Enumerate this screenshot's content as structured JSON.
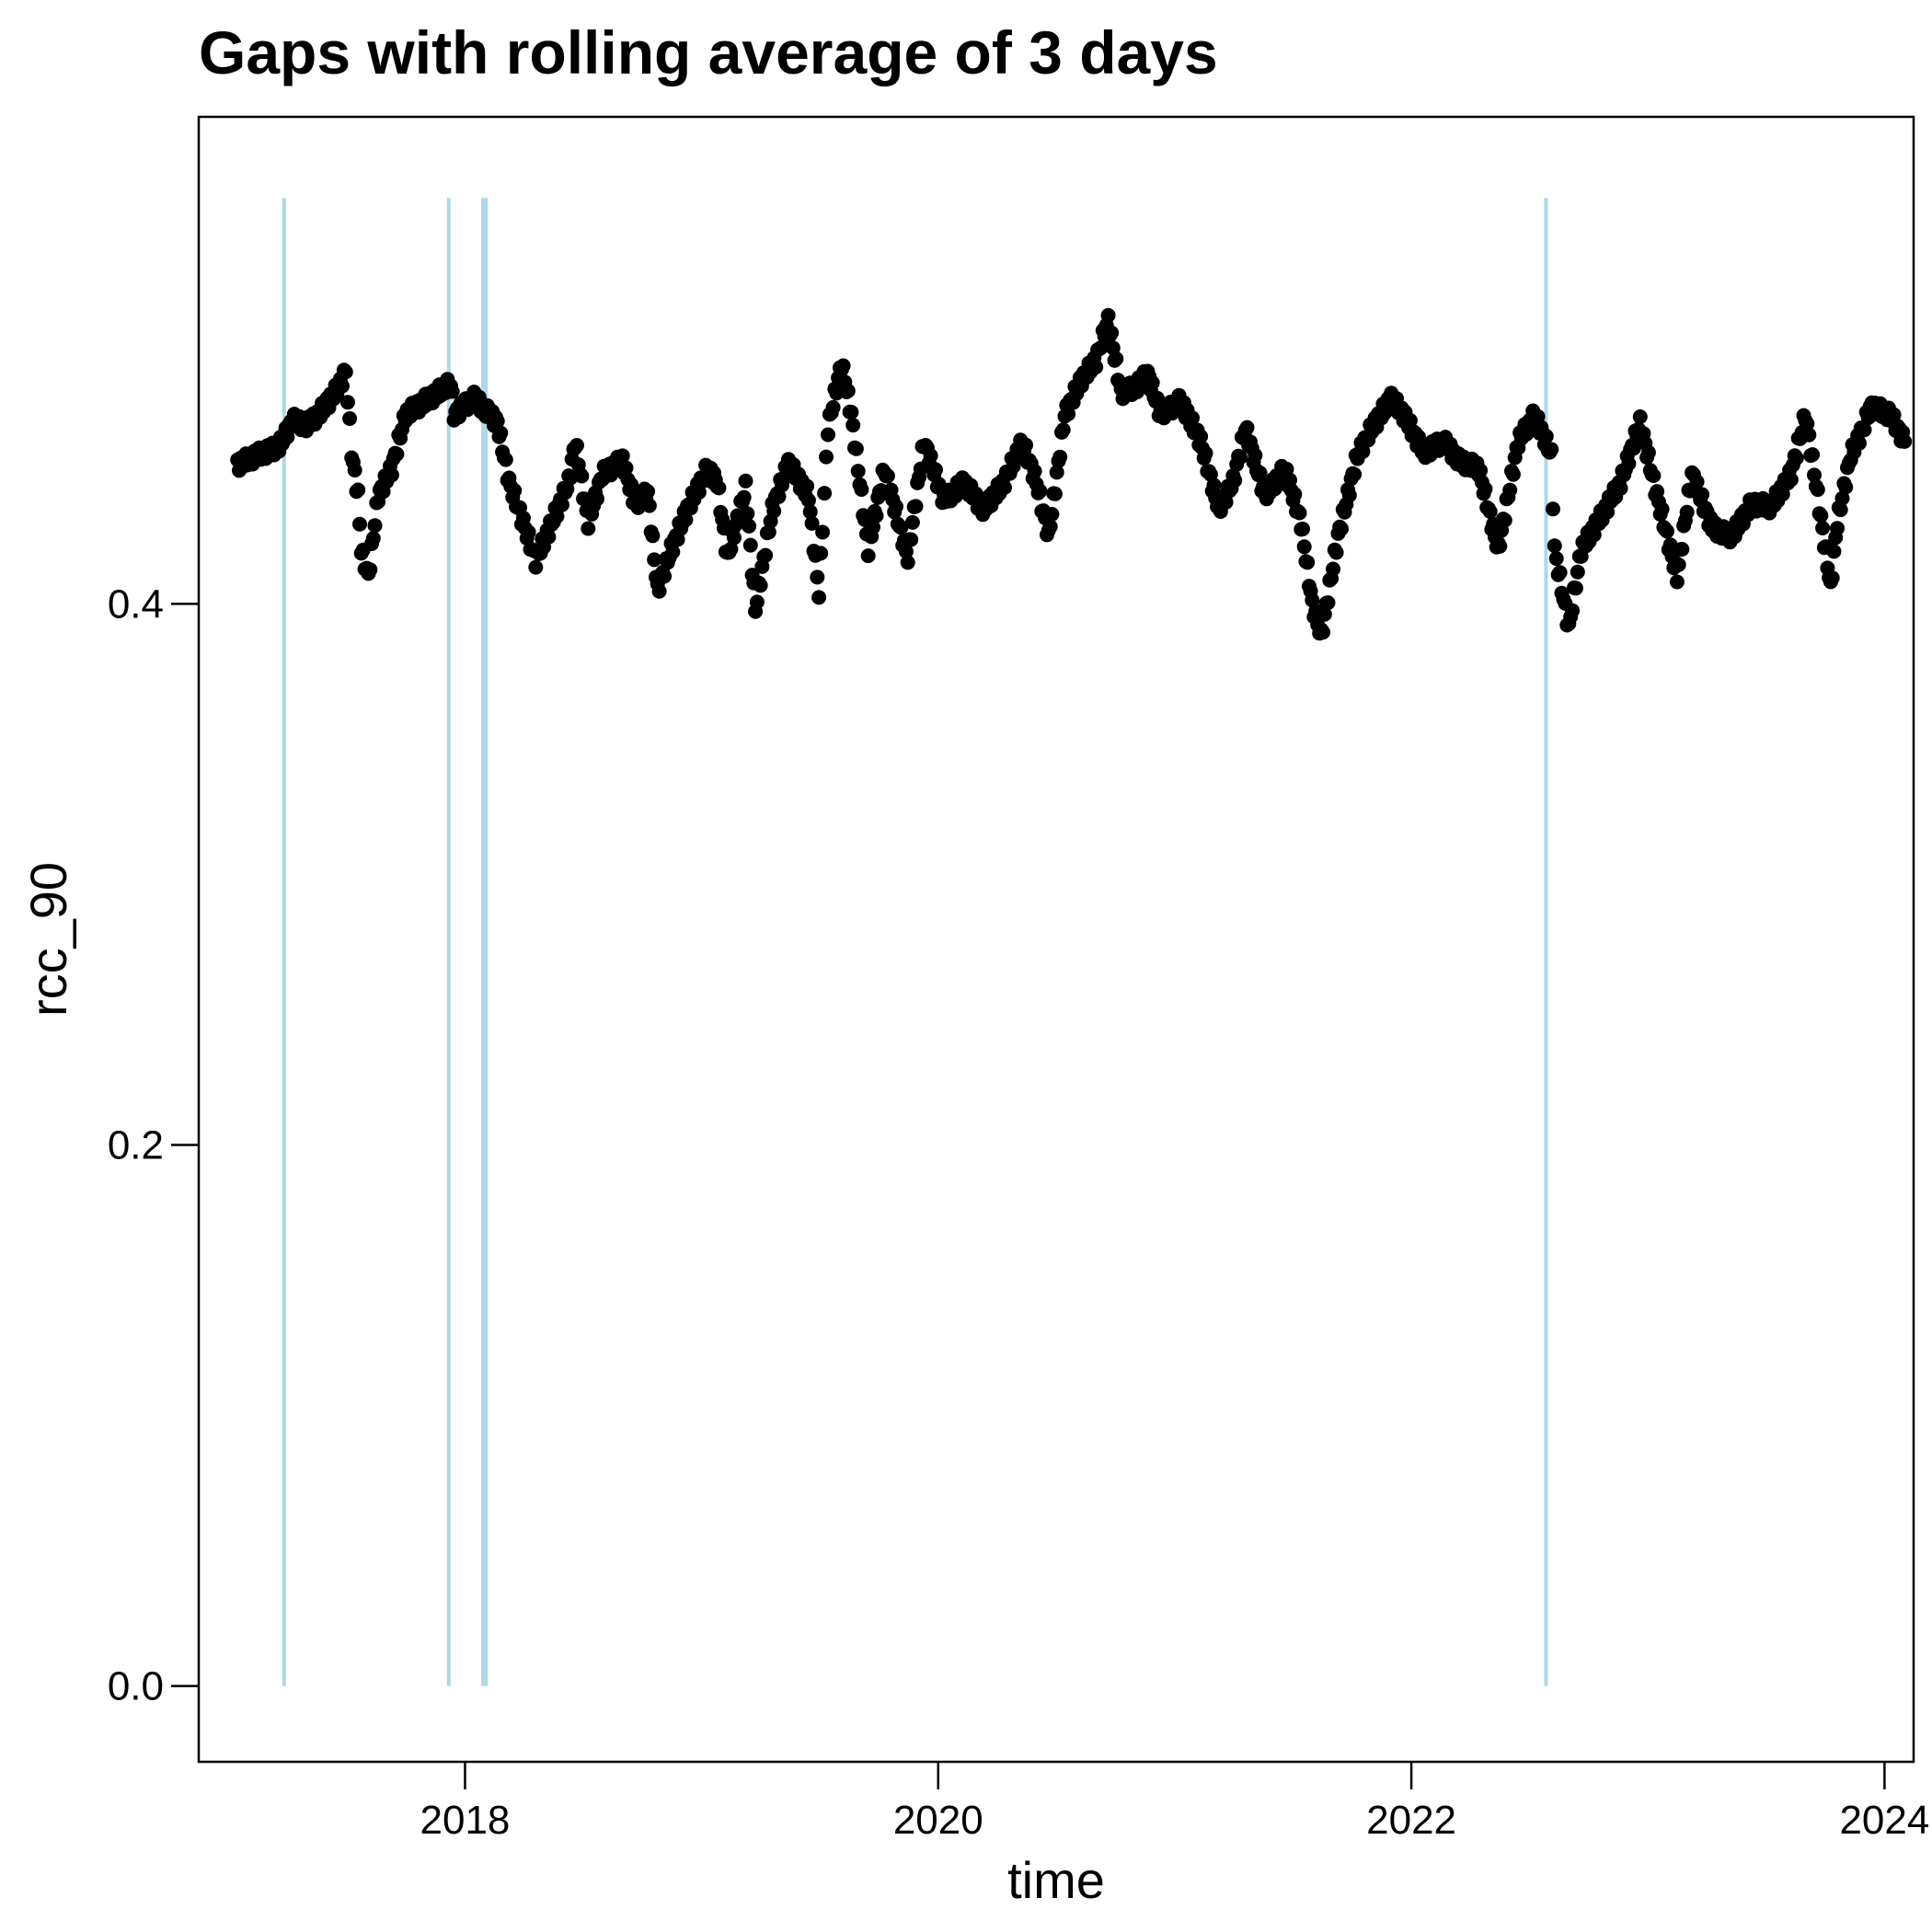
{
  "chart_data": {
    "type": "scatter",
    "title": "Gaps with rolling average of 3 days",
    "xlabel": "time",
    "ylabel": "rcc_90",
    "x_ticks": [
      "2018",
      "2020",
      "2022",
      "2024"
    ],
    "y_ticks": [
      "0.0",
      "0.2",
      "0.4"
    ],
    "ylim": [
      -0.028,
      0.58
    ],
    "xlim": [
      "2016-11-16",
      "2024-02-15"
    ],
    "grid": false,
    "colors": {
      "points": "#000000",
      "gaps": "#add8e6"
    },
    "gaps": [
      {
        "start": "2017-03-25",
        "end": "2017-03-27"
      },
      {
        "start": "2017-12-04",
        "end": "2017-12-06"
      },
      {
        "start": "2018-01-26",
        "end": "2018-02-05"
      },
      {
        "start": "2022-07-25",
        "end": "2022-07-27"
      }
    ],
    "gap_range": [
      0.0,
      0.55
    ],
    "series": [
      {
        "points": [
          [
            "2017-01-15",
            0.4515
          ],
          [
            "2017-02-15",
            0.455
          ],
          [
            "2017-03-15",
            0.4575
          ],
          [
            "2017-03-25",
            0.46
          ],
          [
            "2017-04-10",
            0.468
          ],
          [
            "2017-05-01",
            0.466
          ],
          [
            "2017-05-20",
            0.47
          ],
          [
            "2017-06-05",
            0.475
          ],
          [
            "2017-06-20",
            0.48
          ],
          [
            "2017-07-01",
            0.486
          ],
          [
            "2017-07-10",
            0.456
          ],
          [
            "2017-07-20",
            0.44
          ],
          [
            "2017-07-25",
            0.42
          ],
          [
            "2017-08-05",
            0.41
          ],
          [
            "2017-08-20",
            0.44
          ],
          [
            "2017-09-10",
            0.45
          ],
          [
            "2017-10-01",
            0.47
          ],
          [
            "2017-11-01",
            0.475
          ],
          [
            "2017-11-20",
            0.478
          ],
          [
            "2017-12-10",
            0.482
          ],
          [
            "2017-12-15",
            0.47
          ],
          [
            "2018-01-15",
            0.476
          ],
          [
            "2018-02-20",
            0.467
          ],
          [
            "2018-03-10",
            0.445
          ],
          [
            "2018-04-01",
            0.43
          ],
          [
            "2018-04-20",
            0.416
          ],
          [
            "2018-05-15",
            0.43
          ],
          [
            "2018-06-10",
            0.445
          ],
          [
            "2018-06-20",
            0.46
          ],
          [
            "2018-07-10",
            0.43
          ],
          [
            "2018-08-01",
            0.448
          ],
          [
            "2018-09-01",
            0.453
          ],
          [
            "2018-09-20",
            0.437
          ],
          [
            "2018-10-10",
            0.441
          ],
          [
            "2018-10-25",
            0.405
          ],
          [
            "2018-11-15",
            0.42
          ],
          [
            "2018-12-10",
            0.435
          ],
          [
            "2019-01-10",
            0.45
          ],
          [
            "2019-01-25",
            0.445
          ],
          [
            "2019-02-10",
            0.417
          ],
          [
            "2019-03-10",
            0.443
          ],
          [
            "2019-03-25",
            0.398
          ],
          [
            "2019-04-20",
            0.435
          ],
          [
            "2019-05-15",
            0.452
          ],
          [
            "2019-06-15",
            0.44
          ],
          [
            "2019-07-01",
            0.404
          ],
          [
            "2019-07-15",
            0.465
          ],
          [
            "2019-08-05",
            0.489
          ],
          [
            "2019-08-20",
            0.47
          ],
          [
            "2019-09-15",
            0.42
          ],
          [
            "2019-10-10",
            0.45
          ],
          [
            "2019-11-15",
            0.417
          ],
          [
            "2019-12-10",
            0.46
          ],
          [
            "2020-01-10",
            0.438
          ],
          [
            "2020-02-10",
            0.445
          ],
          [
            "2020-03-10",
            0.435
          ],
          [
            "2020-04-10",
            0.444
          ],
          [
            "2020-05-10",
            0.46
          ],
          [
            "2020-06-01",
            0.445
          ],
          [
            "2020-06-20",
            0.425
          ],
          [
            "2020-07-15",
            0.47
          ],
          [
            "2020-08-10",
            0.483
          ],
          [
            "2020-09-01",
            0.49
          ],
          [
            "2020-09-20",
            0.505
          ],
          [
            "2020-10-10",
            0.478
          ],
          [
            "2020-11-01",
            0.48
          ],
          [
            "2020-11-20",
            0.485
          ],
          [
            "2020-12-10",
            0.47
          ],
          [
            "2021-01-10",
            0.475
          ],
          [
            "2021-02-10",
            0.46
          ],
          [
            "2021-03-10",
            0.435
          ],
          [
            "2021-04-01",
            0.445
          ],
          [
            "2021-04-20",
            0.465
          ],
          [
            "2021-05-20",
            0.44
          ],
          [
            "2021-06-20",
            0.45
          ],
          [
            "2021-07-15",
            0.43
          ],
          [
            "2021-08-01",
            0.4
          ],
          [
            "2021-08-15",
            0.388
          ],
          [
            "2021-09-10",
            0.425
          ],
          [
            "2021-10-10",
            0.455
          ],
          [
            "2021-11-01",
            0.465
          ],
          [
            "2021-12-01",
            0.476
          ],
          [
            "2021-12-20",
            0.47
          ],
          [
            "2022-01-20",
            0.456
          ],
          [
            "2022-02-20",
            0.46
          ],
          [
            "2022-03-15",
            0.453
          ],
          [
            "2022-04-15",
            0.45
          ],
          [
            "2022-05-15",
            0.42
          ],
          [
            "2022-06-15",
            0.46
          ],
          [
            "2022-07-10",
            0.47
          ],
          [
            "2022-08-05",
            0.455
          ],
          [
            "2022-08-10",
            0.42
          ],
          [
            "2022-09-01",
            0.391
          ],
          [
            "2022-09-20",
            0.42
          ],
          [
            "2022-10-20",
            0.432
          ],
          [
            "2022-11-20",
            0.445
          ],
          [
            "2022-12-20",
            0.467
          ],
          [
            "2023-01-15",
            0.44
          ],
          [
            "2023-02-15",
            0.41
          ],
          [
            "2023-03-10",
            0.448
          ],
          [
            "2023-04-10",
            0.428
          ],
          [
            "2023-05-10",
            0.425
          ],
          [
            "2023-06-10",
            0.437
          ],
          [
            "2023-07-10",
            0.436
          ],
          [
            "2023-08-10",
            0.448
          ],
          [
            "2023-09-01",
            0.47
          ],
          [
            "2023-09-20",
            0.44
          ],
          [
            "2023-10-10",
            0.406
          ],
          [
            "2023-10-20",
            0.43
          ],
          [
            "2023-11-10",
            0.455
          ],
          [
            "2023-12-01",
            0.466
          ],
          [
            "2023-12-10",
            0.473
          ],
          [
            "2024-01-10",
            0.47
          ],
          [
            "2024-02-01",
            0.46
          ]
        ]
      }
    ]
  }
}
